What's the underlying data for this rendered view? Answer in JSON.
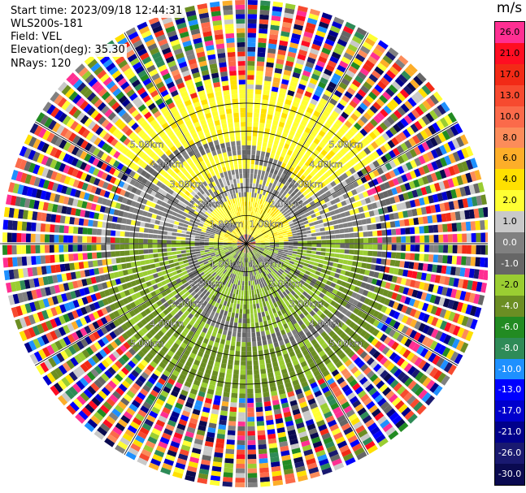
{
  "header": {
    "start_time": "Start time: 2023/09/18 12:44:31",
    "instrument": "WLS200s-181",
    "field": "Field: VEL",
    "elevation": "Elevation(deg): 35.30",
    "nrays": "NRays: 120"
  },
  "colorbar": {
    "unit": "m/s",
    "levels": [
      {
        "label": "26.0",
        "color": "#ff2f92"
      },
      {
        "label": "21.0",
        "color": "#ff0d22"
      },
      {
        "label": "17.0",
        "color": "#f22a16"
      },
      {
        "label": "13.0",
        "color": "#f74a2f"
      },
      {
        "label": "10.0",
        "color": "#fb6a4a"
      },
      {
        "label": "8.0",
        "color": "#fc8c5a"
      },
      {
        "label": "6.0",
        "color": "#fdae29"
      },
      {
        "label": "4.0",
        "color": "#ffe000"
      },
      {
        "label": "2.0",
        "color": "#ffff33"
      },
      {
        "label": "1.0",
        "color": "#c9c9c9"
      },
      {
        "label": "0.0",
        "color": "#808080"
      },
      {
        "label": "-1.0",
        "color": "#666666"
      },
      {
        "label": "-2.0",
        "color": "#9acd32"
      },
      {
        "label": "-4.0",
        "color": "#6b8e23"
      },
      {
        "label": "-6.0",
        "color": "#228b22"
      },
      {
        "label": "-8.0",
        "color": "#2e8b57"
      },
      {
        "label": "-10.0",
        "color": "#1e90ff"
      },
      {
        "label": "-13.0",
        "color": "#0000ff"
      },
      {
        "label": "-17.0",
        "color": "#0000cd"
      },
      {
        "label": "-21.0",
        "color": "#00008b"
      },
      {
        "label": "-26.0",
        "color": "#191970"
      },
      {
        "label": "-30.0",
        "color": "#0a0a50"
      }
    ]
  },
  "rings": [
    {
      "label": "1.00km",
      "km": 1
    },
    {
      "label": "2.00km",
      "km": 2
    },
    {
      "label": "3.00km",
      "km": 3
    },
    {
      "label": "4.00km",
      "km": 4
    },
    {
      "label": "5.00km",
      "km": 5
    }
  ],
  "rings_nw": [
    "1.00km",
    "2.00km",
    "3.00km",
    "4.00km",
    "5.00km"
  ],
  "ppi": {
    "max_range_km": 5.2,
    "ray_count": 120,
    "field": "VEL"
  }
}
